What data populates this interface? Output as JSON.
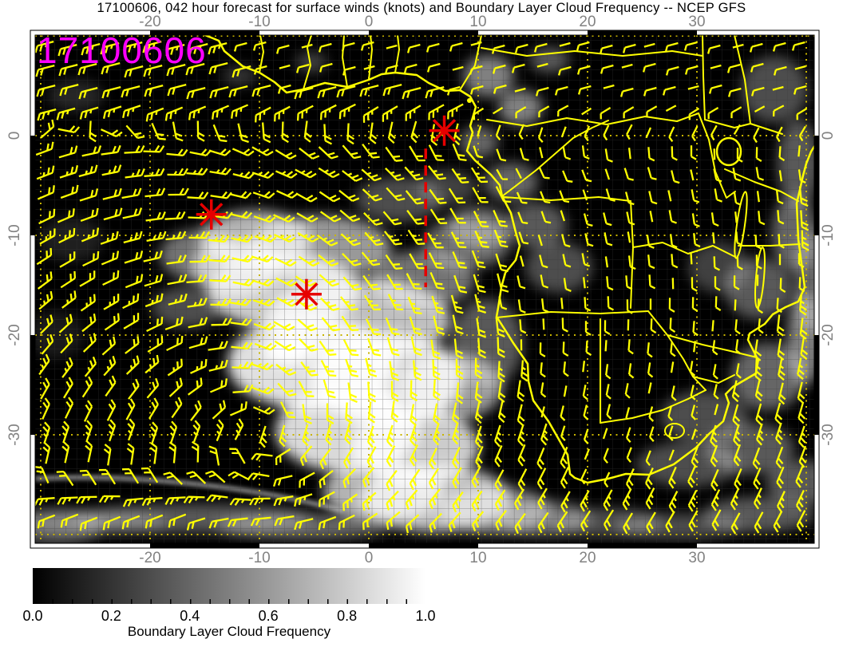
{
  "figure": {
    "title": "17100606, 042 hour forecast for surface winds (knots) and Boundary Layer Cloud Frequency -- NCEP GFS",
    "stamp": "17100606",
    "stamp_color": "#ff00ff",
    "model": "NCEP GFS",
    "forecast_hour": "042"
  },
  "chart_data": {
    "type": "heatmap",
    "title": "17100606, 042 hour forecast for surface winds (knots) and Boundary Layer Cloud Frequency -- NCEP GFS",
    "field": "Boundary Layer Cloud Frequency",
    "wind_overlay": {
      "style": "barbs",
      "units": "knots",
      "color": "#ffff00"
    },
    "x_axis": {
      "unit": "degrees longitude",
      "tick_labels": [
        "-20",
        "-10",
        "0",
        "10",
        "20",
        "30"
      ],
      "tick_values": [
        -20,
        -10,
        0,
        10,
        20,
        30
      ],
      "range": [
        -30.6,
        40.7
      ],
      "gridlines": [
        -30,
        -20,
        -10,
        0,
        10,
        20,
        30,
        40
      ]
    },
    "y_axis": {
      "unit": "degrees latitude",
      "tick_labels": [
        "0",
        "-10",
        "-20",
        "-30"
      ],
      "tick_values": [
        0,
        -10,
        -20,
        -30
      ],
      "range": [
        10.1,
        -40.9
      ],
      "gridlines": [
        10,
        0,
        -10,
        -20,
        -30,
        -40
      ]
    },
    "colorbar": {
      "label": "Boundary Layer Cloud Frequency",
      "tick_labels": [
        "0.0",
        "0.2",
        "0.4",
        "0.6",
        "0.8",
        "1.0"
      ],
      "tick_values": [
        0.0,
        0.2,
        0.4,
        0.6,
        0.8,
        1.0
      ],
      "min": 0,
      "max": 1,
      "colormap": [
        "#000000",
        "#ffffff"
      ]
    },
    "basemap": {
      "background": "#000000",
      "coastline_color": "#ffff00",
      "graticule_color": "#c8b400"
    },
    "markers": [
      {
        "type": "asterisk",
        "color": "#e60000",
        "lon": -14.4,
        "lat": -7.9
      },
      {
        "type": "asterisk",
        "color": "#e60000",
        "lon": -5.7,
        "lat": -15.9
      },
      {
        "type": "asterisk",
        "color": "#e60000",
        "lon": 6.9,
        "lat": 0.5
      }
    ],
    "track_line": {
      "style": "dashed",
      "color": "#e60000",
      "lon": 5.2,
      "lat_start": -1.3,
      "lat_end": -15.2
    }
  }
}
